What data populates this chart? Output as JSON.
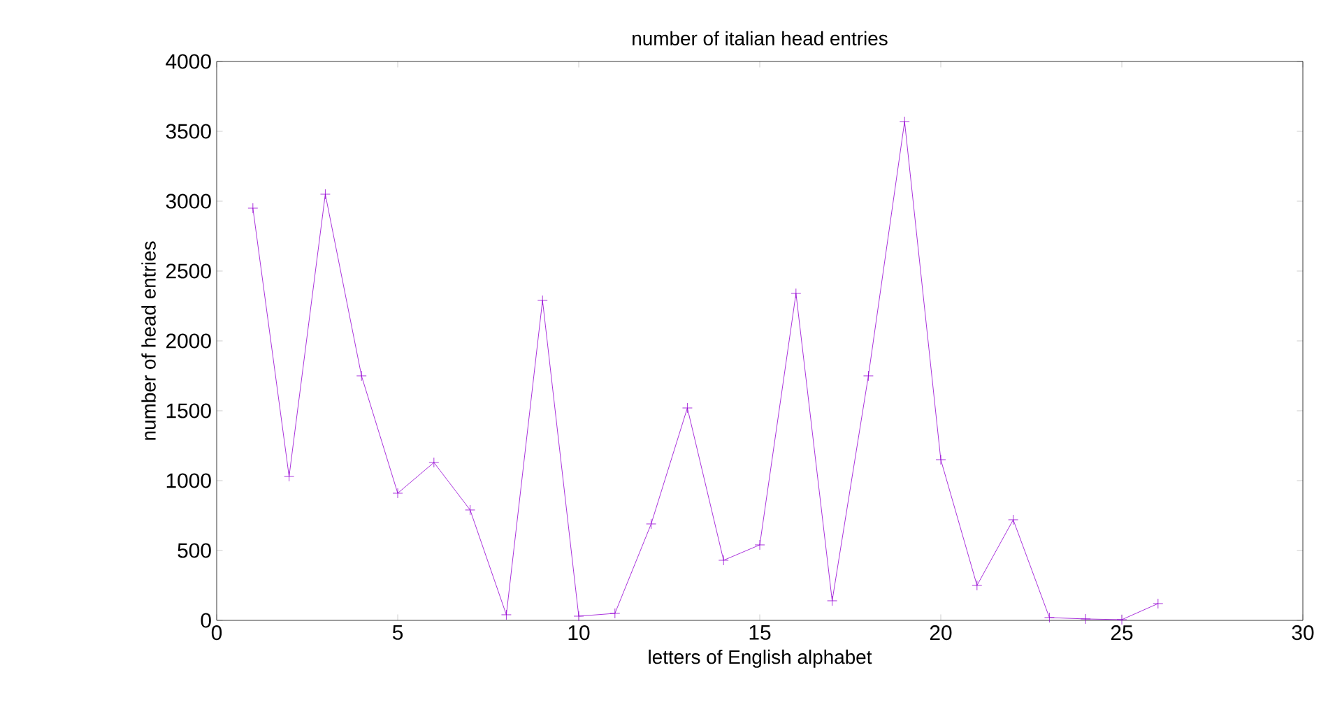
{
  "chart_data": {
    "type": "line",
    "title": "number of italian head entries",
    "xlabel": "letters of English alphabet",
    "ylabel": "number of head entries",
    "x": [
      1,
      2,
      3,
      4,
      5,
      6,
      7,
      8,
      9,
      10,
      11,
      12,
      13,
      14,
      15,
      16,
      17,
      18,
      19,
      20,
      21,
      22,
      23,
      24,
      25,
      26
    ],
    "values": [
      2950,
      1030,
      3050,
      1750,
      910,
      1130,
      790,
      40,
      2290,
      30,
      50,
      690,
      1520,
      430,
      540,
      2340,
      140,
      1750,
      3570,
      1150,
      250,
      720,
      20,
      10,
      5,
      120
    ],
    "color": "#9400d3",
    "marker": "cross",
    "line_style": "solid",
    "xlim": [
      0,
      30
    ],
    "ylim": [
      0,
      4000
    ],
    "xticks": [
      0,
      5,
      10,
      15,
      20,
      25,
      30
    ],
    "yticks": [
      0,
      500,
      1000,
      1500,
      2000,
      2500,
      3000,
      3500,
      4000
    ]
  }
}
